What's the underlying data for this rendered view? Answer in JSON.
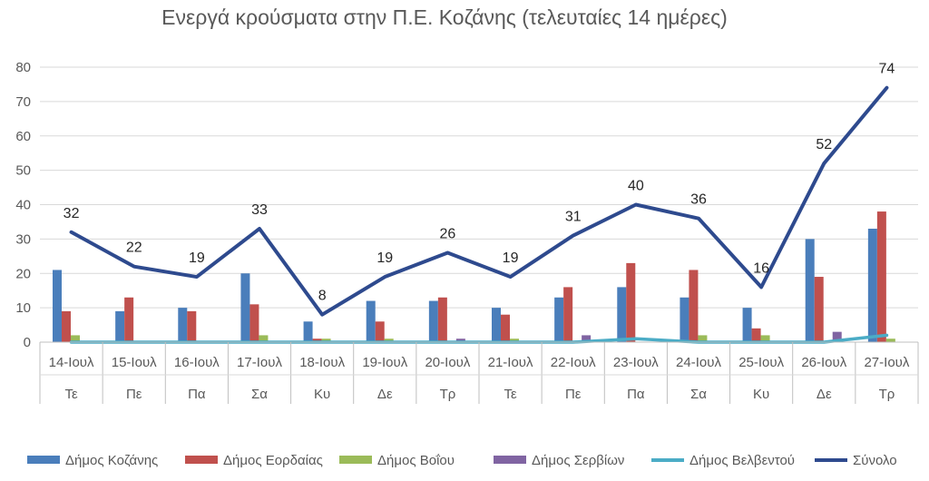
{
  "chart_data": {
    "type": "bar",
    "title": "Ενεργά κρούσματα στην Π.Ε. Κοζάνης (τελευταίες 14 ημέρες)",
    "categories": [
      "14-Ιουλ",
      "15-Ιουλ",
      "16-Ιουλ",
      "17-Ιουλ",
      "18-Ιουλ",
      "19-Ιουλ",
      "20-Ιουλ",
      "21-Ιουλ",
      "22-Ιουλ",
      "23-Ιουλ",
      "24-Ιουλ",
      "25-Ιουλ",
      "26-Ιουλ",
      "27-Ιουλ"
    ],
    "subcategories": [
      "Τε",
      "Πε",
      "Πα",
      "Σα",
      "Κυ",
      "Δε",
      "Τρ",
      "Τε",
      "Πε",
      "Πα",
      "Σα",
      "Κυ",
      "Δε",
      "Τρ"
    ],
    "ylim": [
      0,
      80
    ],
    "yticks": [
      0,
      10,
      20,
      30,
      40,
      50,
      60,
      70,
      80
    ],
    "grid": true,
    "legend_position": "bottom",
    "series": [
      {
        "name": "Δήμος Κοζάνης",
        "kind": "bar",
        "color": "#4a7ebb",
        "values": [
          21,
          9,
          10,
          20,
          6,
          12,
          12,
          10,
          13,
          16,
          13,
          10,
          30,
          33
        ]
      },
      {
        "name": "Δήμος Εορδαίας",
        "kind": "bar",
        "color": "#c0504d",
        "values": [
          9,
          13,
          9,
          11,
          1,
          6,
          13,
          8,
          16,
          23,
          21,
          4,
          19,
          38
        ]
      },
      {
        "name": "Δήμος Βοΐου",
        "kind": "bar",
        "color": "#9bbb59",
        "values": [
          2,
          0,
          0,
          2,
          1,
          1,
          0,
          1,
          0,
          0,
          2,
          2,
          0,
          1
        ]
      },
      {
        "name": "Δήμος Σερβίων",
        "kind": "bar",
        "color": "#8064a2",
        "values": [
          0,
          0,
          0,
          0,
          0,
          0,
          1,
          0,
          2,
          0,
          0,
          0,
          3,
          0
        ]
      },
      {
        "name": "Δήμος Βελβεντού",
        "kind": "line",
        "color": "#4bacc6",
        "values": [
          0,
          0,
          0,
          0,
          0,
          0,
          0,
          0,
          0,
          1,
          0,
          0,
          0,
          2
        ]
      },
      {
        "name": "Σύνολο",
        "kind": "line",
        "color": "#2e4a8e",
        "values": [
          32,
          22,
          19,
          33,
          8,
          19,
          26,
          19,
          31,
          40,
          36,
          16,
          52,
          74
        ],
        "labels": [
          "32",
          "22",
          "19",
          "33",
          "8",
          "19",
          "26",
          "19",
          "31",
          "40",
          "36",
          "16",
          "52",
          "74"
        ]
      }
    ]
  }
}
